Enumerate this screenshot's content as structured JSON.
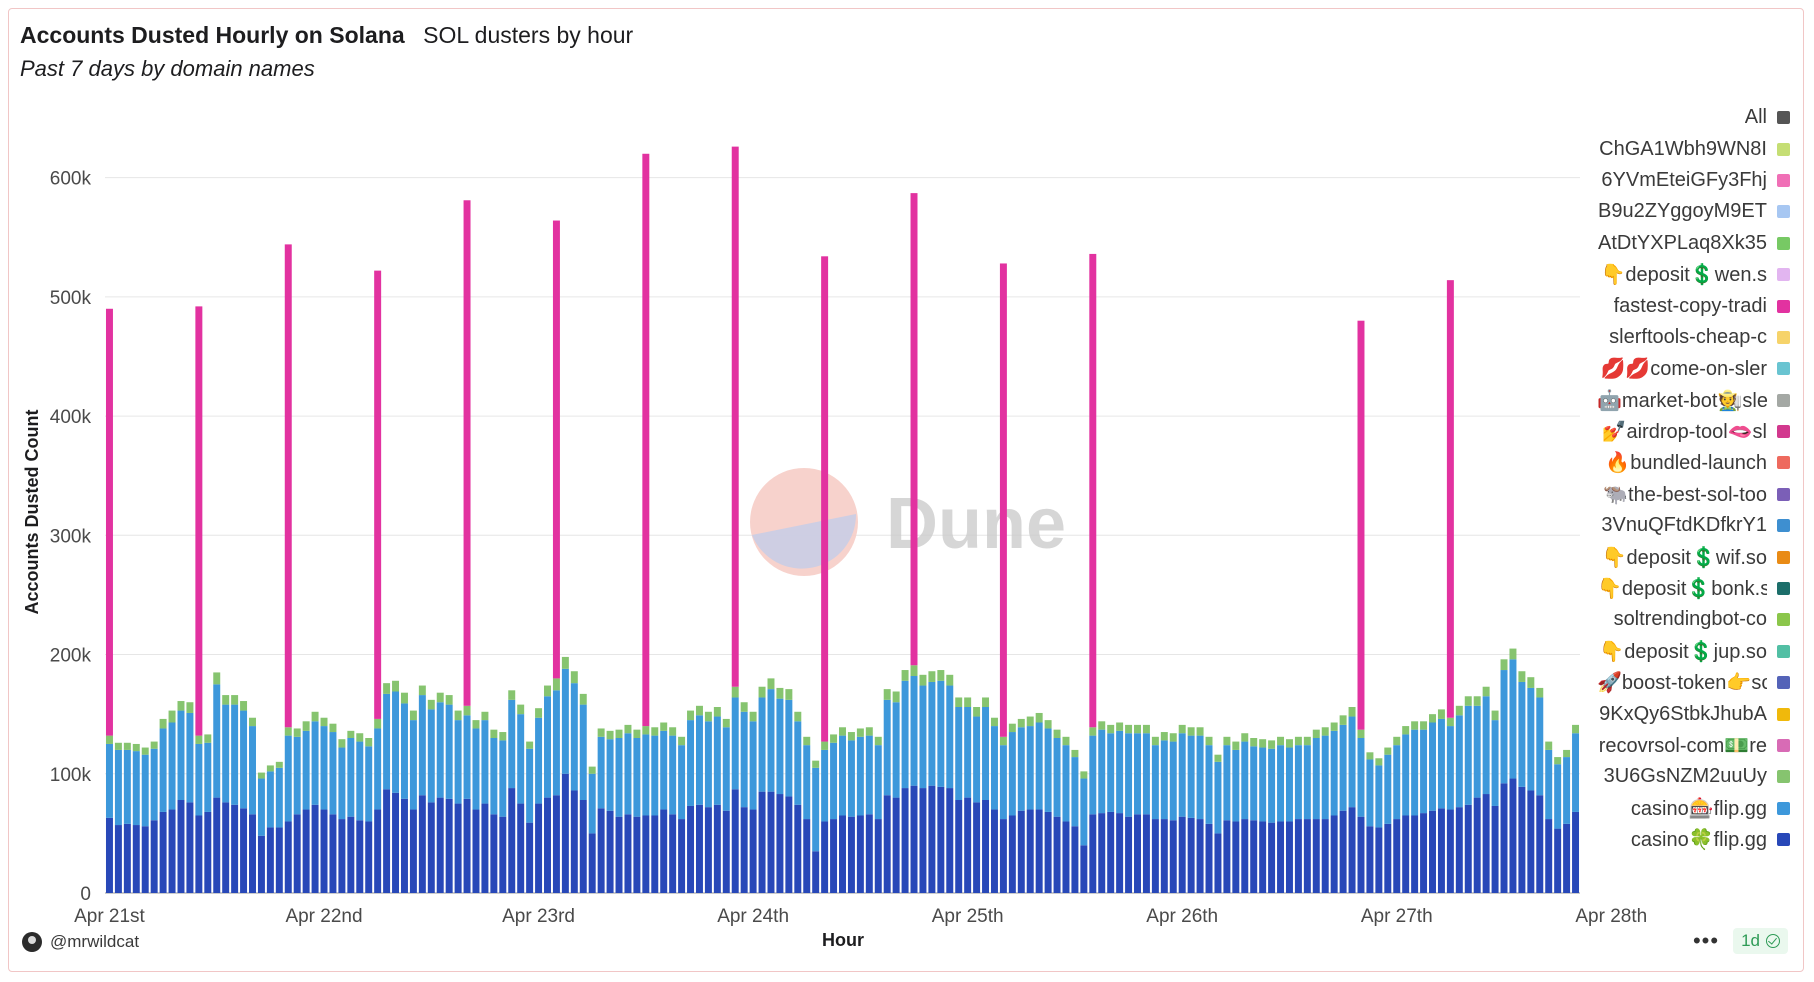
{
  "header": {
    "title": "Accounts Dusted Hourly on Solana",
    "subtitle": "SOL dusters by hour",
    "description": "Past 7 days by domain names"
  },
  "footer": {
    "username": "@mrwildcat",
    "more_label": "•••",
    "refresh_label": "1d"
  },
  "watermark": "Dune",
  "legend": [
    {
      "label": "All",
      "color": "#555555"
    },
    {
      "label": "ChGA1Wbh9WN8I",
      "color": "#c5de74"
    },
    {
      "label": "6YVmEteiGFy3Fhj",
      "color": "#f06fb6"
    },
    {
      "label": "B9u2ZYggoyM9ET",
      "color": "#a7c7f2"
    },
    {
      "label": "AtDtYXPLaq8Xk35",
      "color": "#77c964"
    },
    {
      "label": "👇deposit💲wen.s",
      "color": "#e2b5f0"
    },
    {
      "label": "fastest-copy-tradi",
      "color": "#e232a0"
    },
    {
      "label": "slerftools-cheap-c",
      "color": "#f6d36a"
    },
    {
      "label": "💋💋come-on-sler",
      "color": "#69c4d1"
    },
    {
      "label": "🤖market-bot🧑‍🌾sle",
      "color": "#a4a8a4"
    },
    {
      "label": "💅airdrop-tool🫦sl",
      "color": "#d2388e"
    },
    {
      "label": "🔥bundled-launch",
      "color": "#ee6a5e"
    },
    {
      "label": "🐃the-best-sol-too",
      "color": "#7b5fb7"
    },
    {
      "label": "3VnuQFtdKDfkrY1",
      "color": "#3e8fd0"
    },
    {
      "label": "👇deposit💲wif.so",
      "color": "#e98b15"
    },
    {
      "label": "👇deposit💲bonk.s",
      "color": "#1c6e6a"
    },
    {
      "label": "soltrendingbot-co",
      "color": "#8bc64b"
    },
    {
      "label": "👇deposit💲jup.so",
      "color": "#52bfa4"
    },
    {
      "label": "🚀boost-token👉so",
      "color": "#5463b8"
    },
    {
      "label": "9KxQy6StbkJhubA",
      "color": "#f0b90b"
    },
    {
      "label": "recovrsol-com💵re",
      "color": "#d86bb5"
    },
    {
      "label": "3U6GsNZM2uuUy",
      "color": "#86c46f"
    },
    {
      "label": "casino🎰flip.gg",
      "color": "#3d98db"
    },
    {
      "label": "casino🍀flip.gg",
      "color": "#2848b8"
    }
  ],
  "chart_data": {
    "type": "bar",
    "stacked": true,
    "title": "Accounts Dusted Hourly on Solana",
    "xlabel": "Hour",
    "ylabel": "Accounts Dusted Count",
    "ylim": [
      0,
      650000
    ],
    "yticks": [
      0,
      100000,
      200000,
      300000,
      400000,
      500000,
      600000
    ],
    "ytick_labels": [
      "0",
      "100k",
      "200k",
      "300k",
      "400k",
      "500k",
      "600k"
    ],
    "xticks": [
      "Apr 21st",
      "Apr 22nd",
      "Apr 23rd",
      "Apr 24th",
      "Apr 25th",
      "Apr 26th",
      "Apr 27th",
      "Apr 28th"
    ],
    "x_start": "Apr 21st 00:00",
    "x_interval": "1 hour",
    "legend_position": "right",
    "grid": true,
    "series": [
      {
        "name": "casino🍀flip.gg",
        "color": "#2848b8",
        "values": [
          63000,
          57000,
          58000,
          57000,
          56000,
          61000,
          68000,
          70000,
          78000,
          76000,
          65000,
          68000,
          80000,
          76000,
          74000,
          71000,
          66000,
          48000,
          55000,
          55000,
          60000,
          66000,
          70000,
          74000,
          70000,
          66000,
          62000,
          64000,
          61000,
          60000,
          70000,
          87000,
          84000,
          79000,
          70000,
          82000,
          76000,
          80000,
          79000,
          75000,
          79000,
          70000,
          75000,
          66000,
          64000,
          88000,
          75000,
          59000,
          75000,
          80000,
          82000,
          100000,
          86000,
          78000,
          50000,
          71000,
          69000,
          64000,
          66000,
          64000,
          65000,
          65000,
          70000,
          66000,
          62000,
          73000,
          74000,
          72000,
          74000,
          69000,
          87000,
          72000,
          70000,
          85000,
          85000,
          83000,
          81000,
          74000,
          62000,
          35000,
          60000,
          62000,
          65000,
          64000,
          65000,
          66000,
          62000,
          82000,
          80000,
          88000,
          90000,
          88000,
          90000,
          89000,
          88000,
          78000,
          80000,
          76000,
          78000,
          70000,
          62000,
          65000,
          69000,
          70000,
          70000,
          68000,
          64000,
          60000,
          56000,
          40000,
          66000,
          67000,
          68000,
          67000,
          64000,
          66000,
          66000,
          62000,
          62000,
          61000,
          64000,
          63000,
          62000,
          58000,
          50000,
          61000,
          60000,
          62000,
          61000,
          60000,
          59000,
          60000,
          60000,
          62000,
          62000,
          62000,
          62000,
          65000,
          69000,
          72000,
          64000,
          56000,
          55000,
          58000,
          62000,
          65000,
          65000,
          67000,
          69000,
          71000,
          70000,
          72000,
          74000,
          80000,
          83000,
          73000,
          92000,
          96000,
          89000,
          86000,
          82000,
          62000,
          54000,
          58000,
          68000
        ]
      },
      {
        "name": "casino🎰flip.gg",
        "color": "#3d98db",
        "values": [
          62000,
          63000,
          62000,
          62000,
          60000,
          60000,
          70000,
          73000,
          75000,
          75000,
          60000,
          58000,
          95000,
          82000,
          84000,
          82000,
          74000,
          48000,
          47000,
          50000,
          72000,
          65000,
          66000,
          70000,
          70000,
          69000,
          60000,
          66000,
          66000,
          63000,
          68000,
          80000,
          85000,
          80000,
          75000,
          84000,
          78000,
          80000,
          79000,
          70000,
          70000,
          68000,
          70000,
          64000,
          64000,
          74000,
          75000,
          62000,
          72000,
          85000,
          88000,
          88000,
          90000,
          80000,
          50000,
          60000,
          60000,
          66000,
          68000,
          66000,
          68000,
          67000,
          66000,
          66000,
          62000,
          72000,
          75000,
          72000,
          74000,
          70000,
          77000,
          80000,
          74000,
          79000,
          86000,
          80000,
          81000,
          70000,
          62000,
          70000,
          60000,
          64000,
          67000,
          64000,
          66000,
          66000,
          62000,
          80000,
          80000,
          90000,
          92000,
          86000,
          87000,
          89000,
          86000,
          78000,
          76000,
          72000,
          78000,
          70000,
          62000,
          70000,
          70000,
          70000,
          73000,
          70000,
          66000,
          64000,
          58000,
          56000,
          66000,
          70000,
          66000,
          69000,
          70000,
          68000,
          68000,
          62000,
          66000,
          66000,
          70000,
          69000,
          70000,
          66000,
          60000,
          63000,
          60000,
          65000,
          62000,
          62000,
          62000,
          64000,
          62000,
          62000,
          62000,
          68000,
          70000,
          71000,
          72000,
          76000,
          66000,
          56000,
          52000,
          58000,
          62000,
          68000,
          72000,
          70000,
          74000,
          75000,
          70000,
          77000,
          83000,
          77000,
          82000,
          72000,
          95000,
          100000,
          88000,
          86000,
          82000,
          58000,
          54000,
          56000,
          66000
        ]
      },
      {
        "name": "3U6GsNZM2uuUy",
        "color": "#86c46f",
        "values": [
          7000,
          6000,
          6000,
          6000,
          6000,
          6000,
          8000,
          10000,
          8000,
          9000,
          7000,
          7000,
          10000,
          8000,
          8000,
          8000,
          7000,
          5000,
          5000,
          5000,
          7000,
          7000,
          8000,
          8000,
          7000,
          7000,
          7000,
          6000,
          7000,
          7000,
          8000,
          9000,
          9000,
          9000,
          8000,
          8000,
          8000,
          8000,
          8000,
          8000,
          8000,
          7000,
          7000,
          7000,
          7000,
          8000,
          8000,
          6000,
          8000,
          9000,
          10000,
          10000,
          10000,
          9000,
          6000,
          7000,
          7000,
          7000,
          7000,
          7000,
          7000,
          7000,
          7000,
          7000,
          7000,
          8000,
          8000,
          8000,
          8000,
          7000,
          9000,
          8000,
          8000,
          9000,
          9000,
          9000,
          9000,
          8000,
          7000,
          6000,
          7000,
          7000,
          7000,
          7000,
          7000,
          7000,
          7000,
          9000,
          9000,
          9000,
          9000,
          9000,
          9000,
          9000,
          9000,
          8000,
          8000,
          8000,
          8000,
          7000,
          7000,
          7000,
          7000,
          8000,
          8000,
          7000,
          7000,
          7000,
          6000,
          6000,
          7000,
          7000,
          7000,
          7000,
          7000,
          7000,
          7000,
          7000,
          7000,
          7000,
          7000,
          7000,
          7000,
          7000,
          6000,
          7000,
          7000,
          7000,
          7000,
          7000,
          7000,
          7000,
          7000,
          7000,
          7000,
          7000,
          7000,
          7000,
          8000,
          8000,
          7000,
          6000,
          6000,
          6000,
          7000,
          7000,
          7000,
          7000,
          7000,
          8000,
          7000,
          8000,
          8000,
          8000,
          8000,
          8000,
          9000,
          9000,
          9000,
          9000,
          8000,
          7000,
          6000,
          6000,
          7000
        ]
      },
      {
        "name": "fastest-copy-tradi",
        "color": "#e232a0",
        "values": [
          358000,
          0,
          0,
          0,
          0,
          0,
          0,
          0,
          0,
          0,
          360000,
          0,
          0,
          0,
          0,
          0,
          0,
          0,
          0,
          0,
          405000,
          0,
          0,
          0,
          0,
          0,
          0,
          0,
          0,
          0,
          376000,
          0,
          0,
          0,
          0,
          0,
          0,
          0,
          0,
          0,
          424000,
          0,
          0,
          0,
          0,
          0,
          0,
          0,
          0,
          0,
          384000,
          0,
          0,
          0,
          0,
          0,
          0,
          0,
          0,
          0,
          480000,
          0,
          0,
          0,
          0,
          0,
          0,
          0,
          0,
          0,
          453000,
          0,
          0,
          0,
          0,
          0,
          0,
          0,
          0,
          0,
          407000,
          0,
          0,
          0,
          0,
          0,
          0,
          0,
          0,
          0,
          396000,
          0,
          0,
          0,
          0,
          0,
          0,
          0,
          0,
          0,
          397000,
          0,
          0,
          0,
          0,
          0,
          0,
          0,
          0,
          0,
          397000,
          0,
          0,
          0,
          0,
          0,
          0,
          0,
          0,
          0,
          0,
          0,
          0,
          0,
          0,
          0,
          0,
          0,
          0,
          0,
          0,
          0,
          0,
          0,
          0,
          0,
          0,
          0,
          0,
          0,
          343000,
          0,
          0,
          0,
          0,
          0,
          0,
          0,
          0,
          0,
          367000,
          0,
          0,
          0,
          0,
          0,
          0,
          0,
          0,
          0,
          0,
          0,
          0,
          0,
          0
        ]
      }
    ]
  }
}
